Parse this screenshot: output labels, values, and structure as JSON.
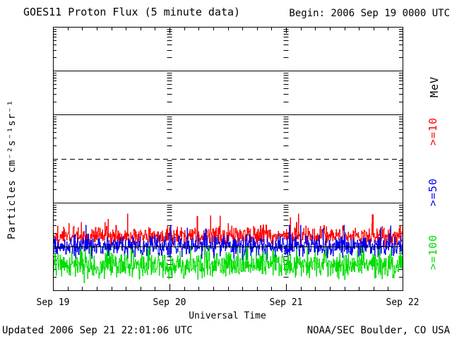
{
  "title": "GOES11 Proton Flux (5 minute data)",
  "begin_label": "Begin: 2006 Sep 19 0000 UTC",
  "footer": {
    "updated": "Updated 2006 Sep 21 22:01:06 UTC",
    "source": "NOAA/SEC Boulder, CO USA"
  },
  "chart_data": {
    "type": "line",
    "title": "GOES11 Proton Flux (5 minute data)",
    "subtitle": "Begin: 2006 Sep 19 0000 UTC",
    "xlabel": "Universal Time",
    "ylabel": "Particles cm⁻²s⁻¹sr⁻¹",
    "unit_label": "MeV",
    "x_axis": {
      "tick_labels": [
        "Sep 19",
        "Sep 20",
        "Sep 21",
        "Sep 22"
      ],
      "span_days": 3,
      "minor_tick_hours": 3,
      "day_boundary_dashed_columns": true
    },
    "y_axis": {
      "scale": "log10",
      "limits": [
        0.01,
        10000
      ],
      "decade_exponents": [
        4,
        3,
        2,
        1,
        0,
        -1,
        -2
      ],
      "solid_gridline_exponents": [
        3,
        2,
        0,
        -1
      ],
      "dashed_gridline_exponents": [
        1
      ]
    },
    "samples_per_day": 288,
    "noise_seed": 20060919,
    "series": [
      {
        "name": ">=10",
        "color": "#ff0000",
        "description": "noisy quiet-time background band",
        "approx_mean_flux": 0.17,
        "approx_range": [
          0.088,
          0.58
        ],
        "log10_mean": -0.76,
        "log10_sigma": 0.11
      },
      {
        "name": ">=50",
        "color": "#0000ee",
        "description": "noisy quiet-time background band",
        "approx_mean_flux": 0.1,
        "approx_range": [
          0.044,
          0.3
        ],
        "log10_mean": -1.0,
        "log10_sigma": 0.12
      },
      {
        "name": ">=100",
        "color": "#00dd00",
        "description": "noisy quiet-time background band",
        "approx_mean_flux": 0.038,
        "approx_range": [
          0.0135,
          0.095
        ],
        "log10_mean": -1.42,
        "log10_sigma": 0.15
      }
    ]
  }
}
